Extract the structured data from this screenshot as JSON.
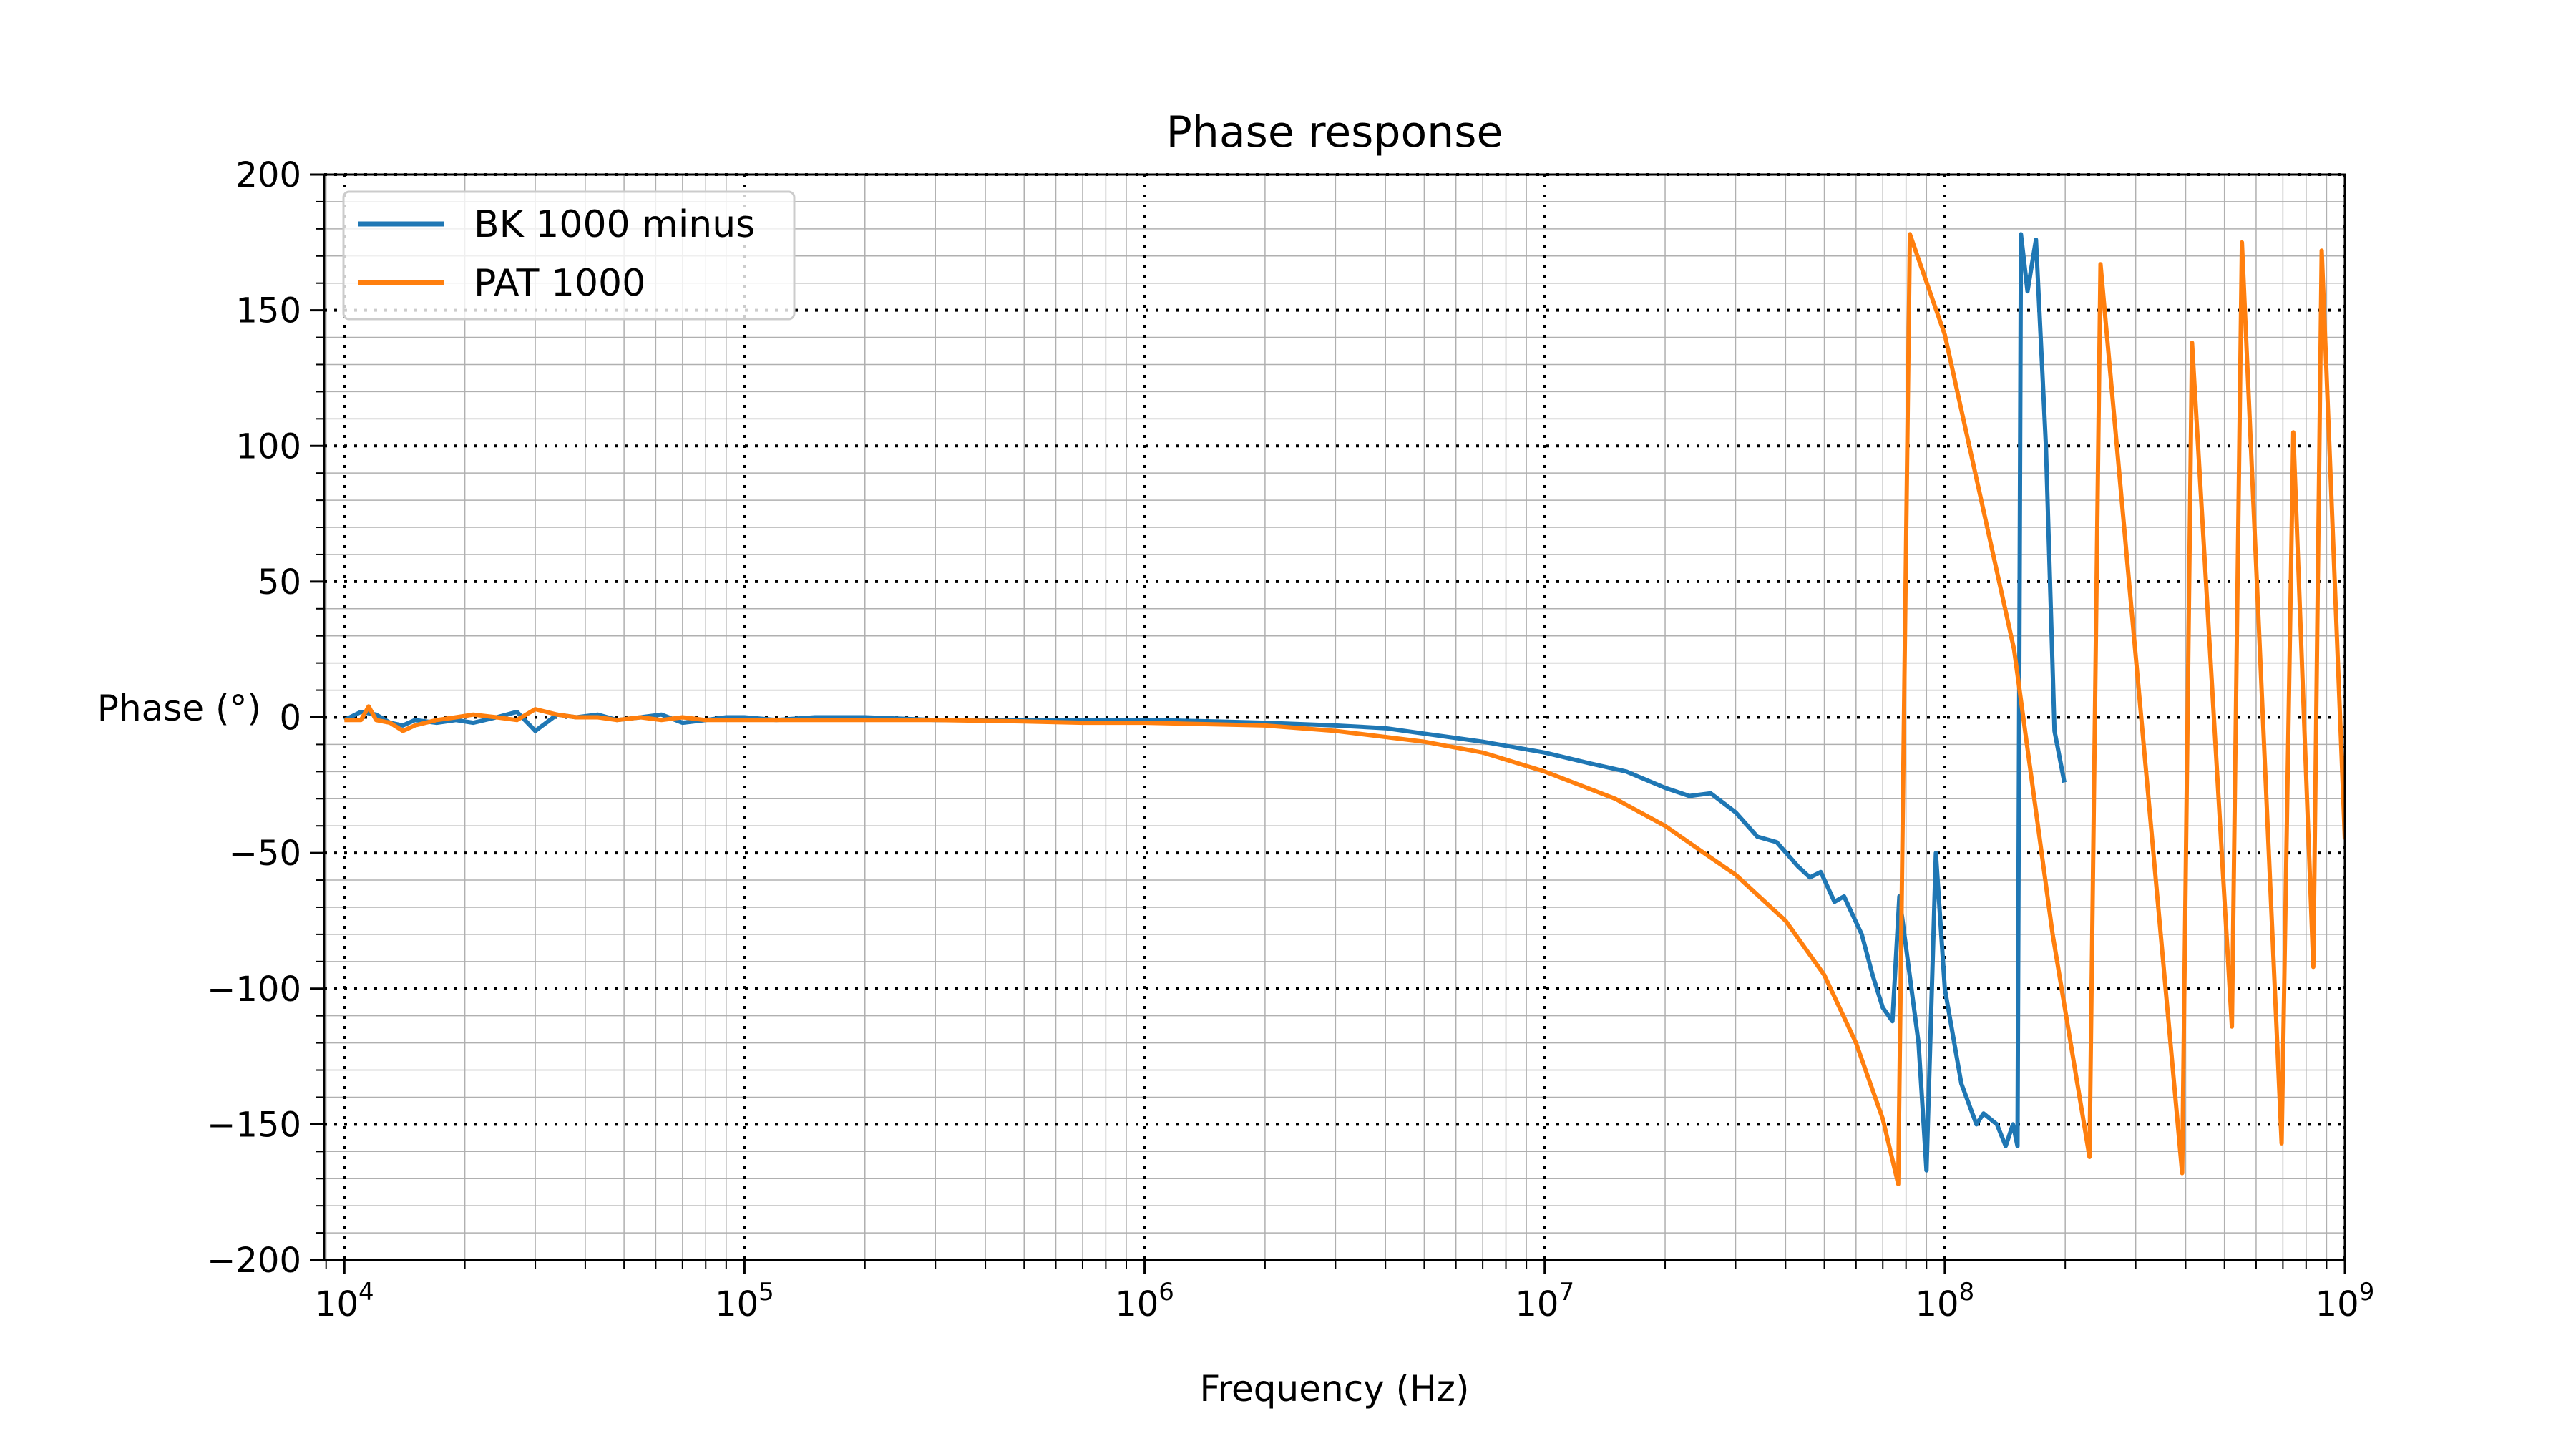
{
  "chart_data": {
    "type": "line",
    "title": "Phase response",
    "xlabel": "Frequency (Hz)",
    "ylabel": "Phase (°)",
    "xscale": "log",
    "xlim": [
      8900,
      1000000000
    ],
    "ylim": [
      -200,
      200
    ],
    "xticks": [
      10000,
      100000,
      1000000,
      10000000,
      100000000,
      1000000000
    ],
    "xtick_labels": [
      {
        "base": "10",
        "exp": "4"
      },
      {
        "base": "10",
        "exp": "5"
      },
      {
        "base": "10",
        "exp": "6"
      },
      {
        "base": "10",
        "exp": "7"
      },
      {
        "base": "10",
        "exp": "8"
      },
      {
        "base": "10",
        "exp": "9"
      }
    ],
    "yticks": [
      -200,
      -150,
      -100,
      -50,
      0,
      50,
      100,
      150,
      200
    ],
    "ytick_labels": [
      "−200",
      "−150",
      "−100",
      "−50",
      "0",
      "50",
      "100",
      "150",
      "200"
    ],
    "grid": {
      "major": "dotted black",
      "minor": "thin gray"
    },
    "legend": {
      "placement": "top-left"
    },
    "series": [
      {
        "name": "BK 1000 minus",
        "color": "#1f77b4",
        "x": [
          10000,
          11000,
          12000,
          13000,
          14000,
          15000,
          17000,
          19000,
          21000,
          24000,
          27000,
          30000,
          34000,
          38000,
          43000,
          48000,
          55000,
          62000,
          70000,
          80000,
          90000,
          100000,
          120000,
          150000,
          200000,
          300000,
          500000,
          700000,
          1000000,
          1500000,
          2000000,
          3000000,
          4000000,
          5000000,
          7000000,
          10000000,
          13000000,
          16000000,
          20000000,
          23000000,
          26000000,
          30000000,
          34000000,
          38000000,
          43000000,
          46000000,
          49000000,
          53000000,
          56000000,
          62000000,
          66000000,
          70000000,
          74000000,
          77000000,
          86000000,
          90000000,
          95000000,
          100000000,
          110000000,
          120000000,
          125000000,
          135000000,
          142000000,
          148000000,
          152000000,
          155000000,
          161000000,
          169000000,
          179000000,
          188000000,
          199000000
        ],
        "y": [
          -1,
          2,
          1,
          -2,
          -3,
          -1,
          -2,
          -1,
          -2,
          0,
          2,
          -5,
          1,
          0,
          1,
          -1,
          0,
          1,
          -2,
          -1,
          0,
          0,
          -1,
          0,
          0,
          -1,
          -1,
          -1,
          -1,
          -1.5,
          -2,
          -3,
          -4,
          -6,
          -9,
          -13,
          -17,
          -20,
          -26,
          -29,
          -28,
          -35,
          -44,
          -46,
          -55,
          -59,
          -57,
          -68,
          -66,
          -80,
          -95,
          -107,
          -112,
          -66,
          -120,
          -167,
          -50,
          -100,
          -135,
          -150,
          -146,
          -150,
          -158,
          -150,
          -158,
          178,
          157,
          176,
          100,
          -5,
          -24
        ]
      },
      {
        "name": "PAT 1000",
        "color": "#ff7f0e",
        "x": [
          10000,
          11000,
          11500,
          12000,
          13000,
          14000,
          15000,
          17000,
          19000,
          21000,
          24000,
          27000,
          30000,
          34000,
          38000,
          43000,
          48000,
          55000,
          62000,
          70000,
          80000,
          90000,
          100000,
          150000,
          200000,
          300000,
          500000,
          700000,
          1000000,
          2000000,
          3000000,
          5000000,
          7000000,
          10000000,
          15000000,
          20000000,
          25000000,
          30000000,
          40000000,
          50000000,
          60000000,
          70000000,
          76500000,
          81800000,
          100000000,
          149000000,
          186000000,
          230000000,
          245000000,
          392000000,
          415000000,
          522000000,
          553000000,
          695000000,
          743000000,
          834000000,
          875000000,
          1000000000
        ],
        "y": [
          -1,
          -1,
          4,
          -1,
          -2,
          -5,
          -3,
          -1,
          0,
          1,
          0,
          -1,
          3,
          1,
          0,
          0,
          -1,
          0,
          -1,
          0,
          -1,
          -1,
          -1,
          -1,
          -1,
          -1,
          -1.5,
          -2,
          -2,
          -3,
          -5,
          -9,
          -13,
          -20,
          -30,
          -40,
          -50,
          -58,
          -75,
          -95,
          -120,
          -148,
          -172,
          178,
          141,
          25,
          -80,
          -162,
          167,
          -168,
          138,
          -114,
          175,
          -157,
          105,
          -92,
          172,
          -45
        ]
      }
    ]
  }
}
